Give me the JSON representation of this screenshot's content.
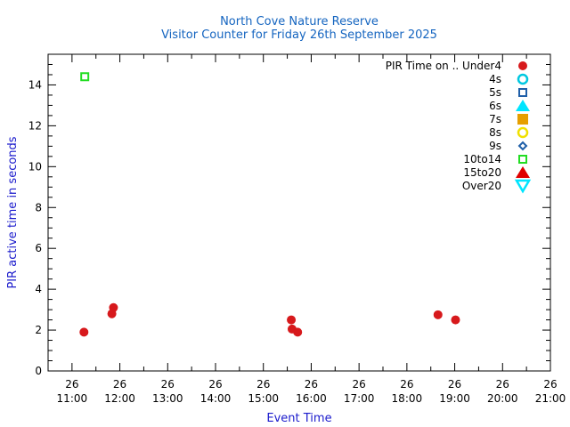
{
  "chart_data": {
    "type": "scatter",
    "title": "North Cove Nature Reserve",
    "subtitle": "Visitor Counter for Friday 26th September 2025",
    "xlabel": "Event Time",
    "ylabel": "PIR active time in seconds",
    "legend_title": "PIR Time on ..",
    "legend_position": "top-right",
    "grid": false,
    "title_color": "#1565c0",
    "axis_label_color": "#1a1acc",
    "x_ticks": [
      {
        "day": "26",
        "time": "11:00",
        "hour": 11
      },
      {
        "day": "26",
        "time": "12:00",
        "hour": 12
      },
      {
        "day": "26",
        "time": "13:00",
        "hour": 13
      },
      {
        "day": "26",
        "time": "14:00",
        "hour": 14
      },
      {
        "day": "26",
        "time": "15:00",
        "hour": 15
      },
      {
        "day": "26",
        "time": "16:00",
        "hour": 16
      },
      {
        "day": "26",
        "time": "17:00",
        "hour": 17
      },
      {
        "day": "26",
        "time": "18:00",
        "hour": 18
      },
      {
        "day": "26",
        "time": "19:00",
        "hour": 19
      },
      {
        "day": "26",
        "time": "20:00",
        "hour": 20
      },
      {
        "day": "26",
        "time": "21:00",
        "hour": 21
      }
    ],
    "x_range": [
      "10:30",
      "21:00"
    ],
    "y_ticks": [
      "0",
      "2",
      "4",
      "6",
      "8",
      "10",
      "12",
      "14"
    ],
    "ylim": [
      0,
      15.5
    ],
    "series": [
      {
        "name": "Under4",
        "symbol": "circle-filled",
        "color": "#d7191c",
        "points": [
          {
            "x": "11:15",
            "y": 1.9
          },
          {
            "x": "11:50",
            "y": 2.8
          },
          {
            "x": "11:52",
            "y": 3.1
          },
          {
            "x": "15:35",
            "y": 2.5
          },
          {
            "x": "15:36",
            "y": 2.05
          },
          {
            "x": "15:43",
            "y": 1.9
          },
          {
            "x": "18:39",
            "y": 2.75
          },
          {
            "x": "19:01",
            "y": 2.5
          }
        ]
      },
      {
        "name": "4s",
        "symbol": "circle-open",
        "color": "#00c8e0",
        "points": []
      },
      {
        "name": "5s",
        "symbol": "square-open",
        "color": "#1f5fa8",
        "points": []
      },
      {
        "name": "6s",
        "symbol": "triangle-filled",
        "color": "#00e5ff",
        "points": []
      },
      {
        "name": "7s",
        "symbol": "square-filled",
        "color": "#e69f00",
        "points": []
      },
      {
        "name": "8s",
        "symbol": "circle-open",
        "color": "#f0e000",
        "points": []
      },
      {
        "name": "9s",
        "symbol": "diamond-open",
        "color": "#1f5fa8",
        "points": []
      },
      {
        "name": "10to14",
        "symbol": "square-open",
        "color": "#22dd22",
        "points": [
          {
            "x": "11:16",
            "y": 14.4
          }
        ]
      },
      {
        "name": "15to20",
        "symbol": "triangle-filled",
        "color": "#e00000",
        "points": []
      },
      {
        "name": "Over20",
        "symbol": "triangle-down-open",
        "color": "#00e5ff",
        "points": []
      }
    ]
  }
}
